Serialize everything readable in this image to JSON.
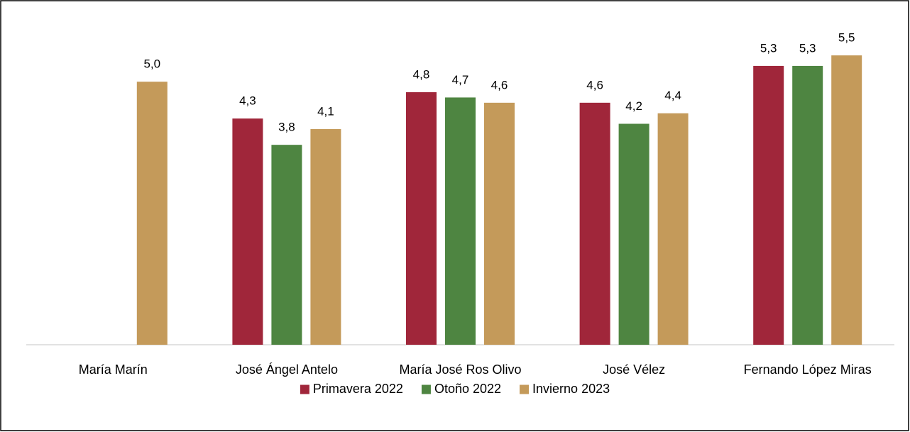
{
  "chart_data": {
    "type": "bar",
    "categories": [
      "María Marín",
      "José Ángel Antelo",
      "María José Ros Olivo",
      "José Vélez",
      "Fernando López Miras"
    ],
    "series": [
      {
        "name": "Primavera 2022",
        "color": "#a0263a",
        "values": [
          null,
          4.3,
          4.8,
          4.6,
          5.3
        ],
        "value_labels": [
          null,
          "4,3",
          "4,8",
          "4,6",
          "5,3"
        ]
      },
      {
        "name": "Otoño 2022",
        "color": "#4e8541",
        "values": [
          null,
          3.8,
          4.7,
          4.2,
          5.3
        ],
        "value_labels": [
          null,
          "3,8",
          "4,7",
          "4,2",
          "5,3"
        ]
      },
      {
        "name": "Invierno 2023",
        "color": "#c49a5a",
        "values": [
          5.0,
          4.1,
          4.6,
          4.4,
          5.5
        ],
        "value_labels": [
          "5,0",
          "4,1",
          "4,6",
          "4,4",
          "5,5"
        ]
      }
    ],
    "ylim": [
      0,
      6
    ],
    "legend": "bottom"
  }
}
